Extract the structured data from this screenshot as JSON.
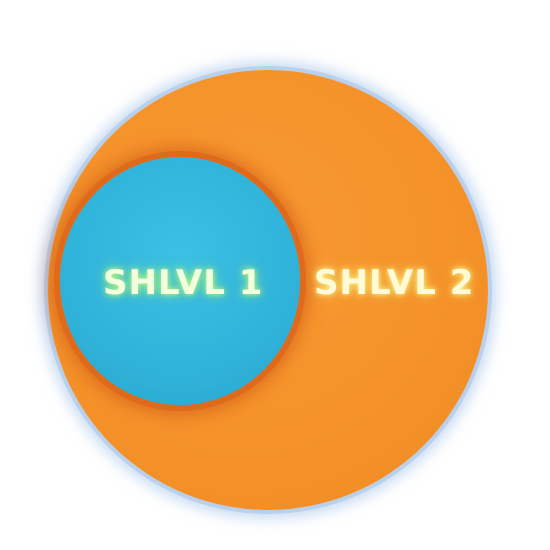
{
  "diagram": {
    "outer_circle": {
      "label": "SHLVL 2",
      "color": "#f5922a"
    },
    "inner_circle": {
      "label": "SHLVL 1",
      "color": "#30b3da"
    }
  }
}
